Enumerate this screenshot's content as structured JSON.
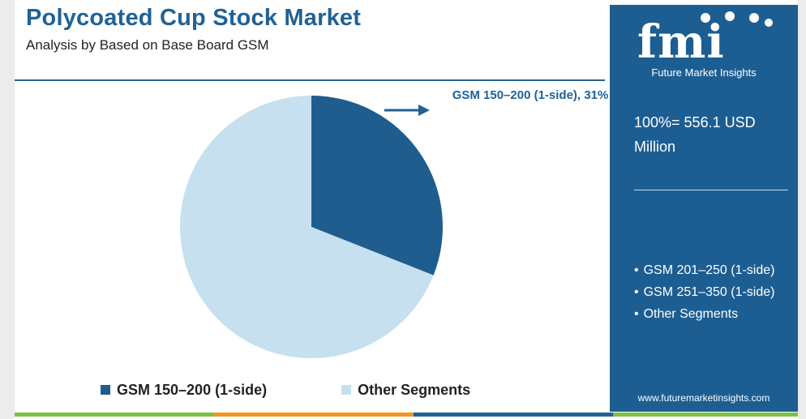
{
  "title": "Polycoated Cup Stock Market",
  "subtitle": "Analysis by Based on Base Board GSM",
  "chart_data": {
    "type": "pie",
    "title": "Polycoated Cup Stock Market",
    "slices": [
      {
        "label": "GSM 150–200 (1-side)",
        "value": 31,
        "color": "#1f5d8f"
      },
      {
        "label": "Other Segments",
        "value": 69,
        "color": "#c6e0f0"
      }
    ],
    "data_label": "GSM 150–200 (1-side), 31%",
    "legend_placement": "bottom"
  },
  "legend": [
    {
      "label": "GSM 150–200 (1-side)",
      "color": "#1f5d8f"
    },
    {
      "label": "Other Segments",
      "color": "#c6e0f0"
    }
  ],
  "sidebar": {
    "logo_text": "fmi",
    "logo_subtitle": "Future Market Insights",
    "total": "100%= 556.1 USD Million",
    "other_segments": [
      "GSM 201–250 (1-side)",
      "GSM 251–350 (1-side)",
      "Other Segments"
    ],
    "website": "www.futuremarketinsights.com"
  },
  "colors": {
    "accent": "#1f6296",
    "sidebar_bg": "#1d5e92",
    "bottom_bar": [
      "#7cc242",
      "#f7941d",
      "#1f6296",
      "#7cc242"
    ]
  }
}
